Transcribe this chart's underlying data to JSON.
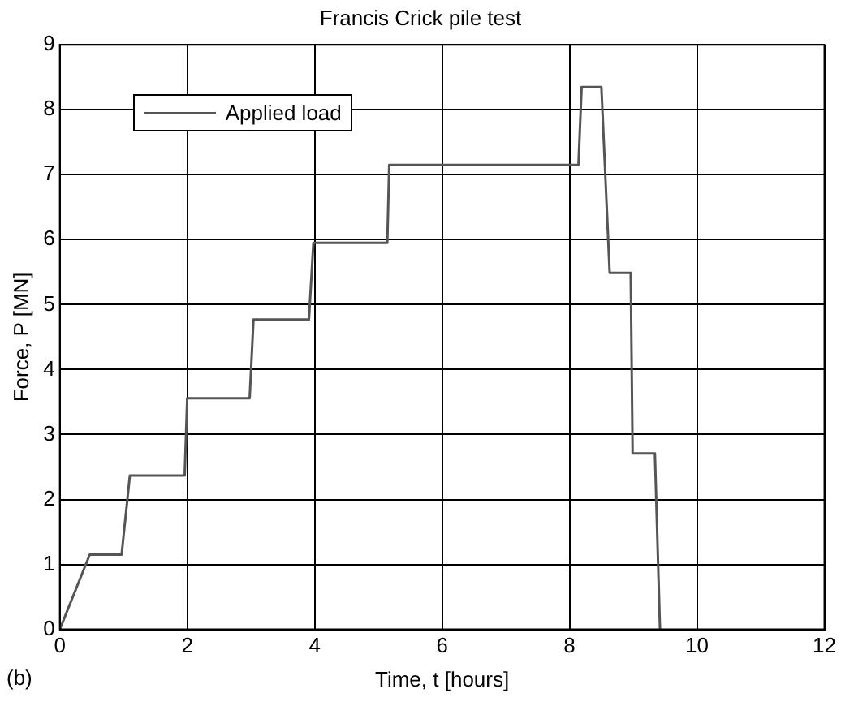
{
  "chart_data": {
    "type": "line",
    "title": "Francis Crick pile test",
    "xlabel": "Time, t [hours]",
    "ylabel": "Force, P [MN]",
    "annotations": [
      "(b)"
    ],
    "xlim": [
      0,
      12
    ],
    "xticks": [
      0,
      2,
      4,
      6,
      8,
      10,
      12
    ],
    "ylim": [
      0,
      9
    ],
    "yticks": [
      0,
      1,
      2,
      3,
      4,
      5,
      6,
      7,
      8,
      9
    ],
    "grid": true,
    "legend": "top left",
    "line_style": "solid",
    "marker": "none",
    "series": [
      {
        "name": "Applied load",
        "color": "#555555",
        "x": [
          0,
          0.47,
          0.97,
          1.1,
          1.96,
          2.0,
          2.98,
          3.04,
          3.91,
          3.98,
          5.14,
          5.17,
          8.14,
          8.19,
          8.5,
          8.63,
          8.96,
          8.99,
          9.34,
          9.42
        ],
        "values": [
          0,
          1.15,
          1.15,
          2.37,
          2.37,
          3.56,
          3.56,
          4.77,
          4.77,
          5.95,
          5.95,
          7.15,
          7.15,
          8.35,
          8.35,
          5.49,
          5.49,
          2.71,
          2.71,
          0
        ]
      }
    ]
  }
}
